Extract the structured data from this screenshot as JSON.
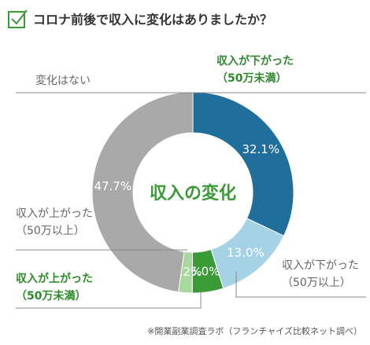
{
  "chart_data": {
    "type": "donut",
    "title": "コロナ前後で収入に変化はありましたか？",
    "center_label": "収入の変化",
    "categories": [
      "収入が下がった\n（50万未満）",
      "収入が下がった\n（50万以上）",
      "収入が上がった\n（50万未満）",
      "収入が上がった\n（50万以上）",
      "変化はない"
    ],
    "values": [
      32.1,
      13.0,
      5.0,
      2.2,
      47.7
    ],
    "value_labels": [
      "32.1%",
      "13.0%",
      "5.0%",
      "2.2%",
      "47.7%"
    ],
    "colors": [
      "#1f6e9c",
      "#a6d2e6",
      "#3a9a35",
      "#a7d99f",
      "#a9a9a9"
    ],
    "source": "※開業副業調査ラボ（フランチャイズ比較ネット調べ）"
  }
}
